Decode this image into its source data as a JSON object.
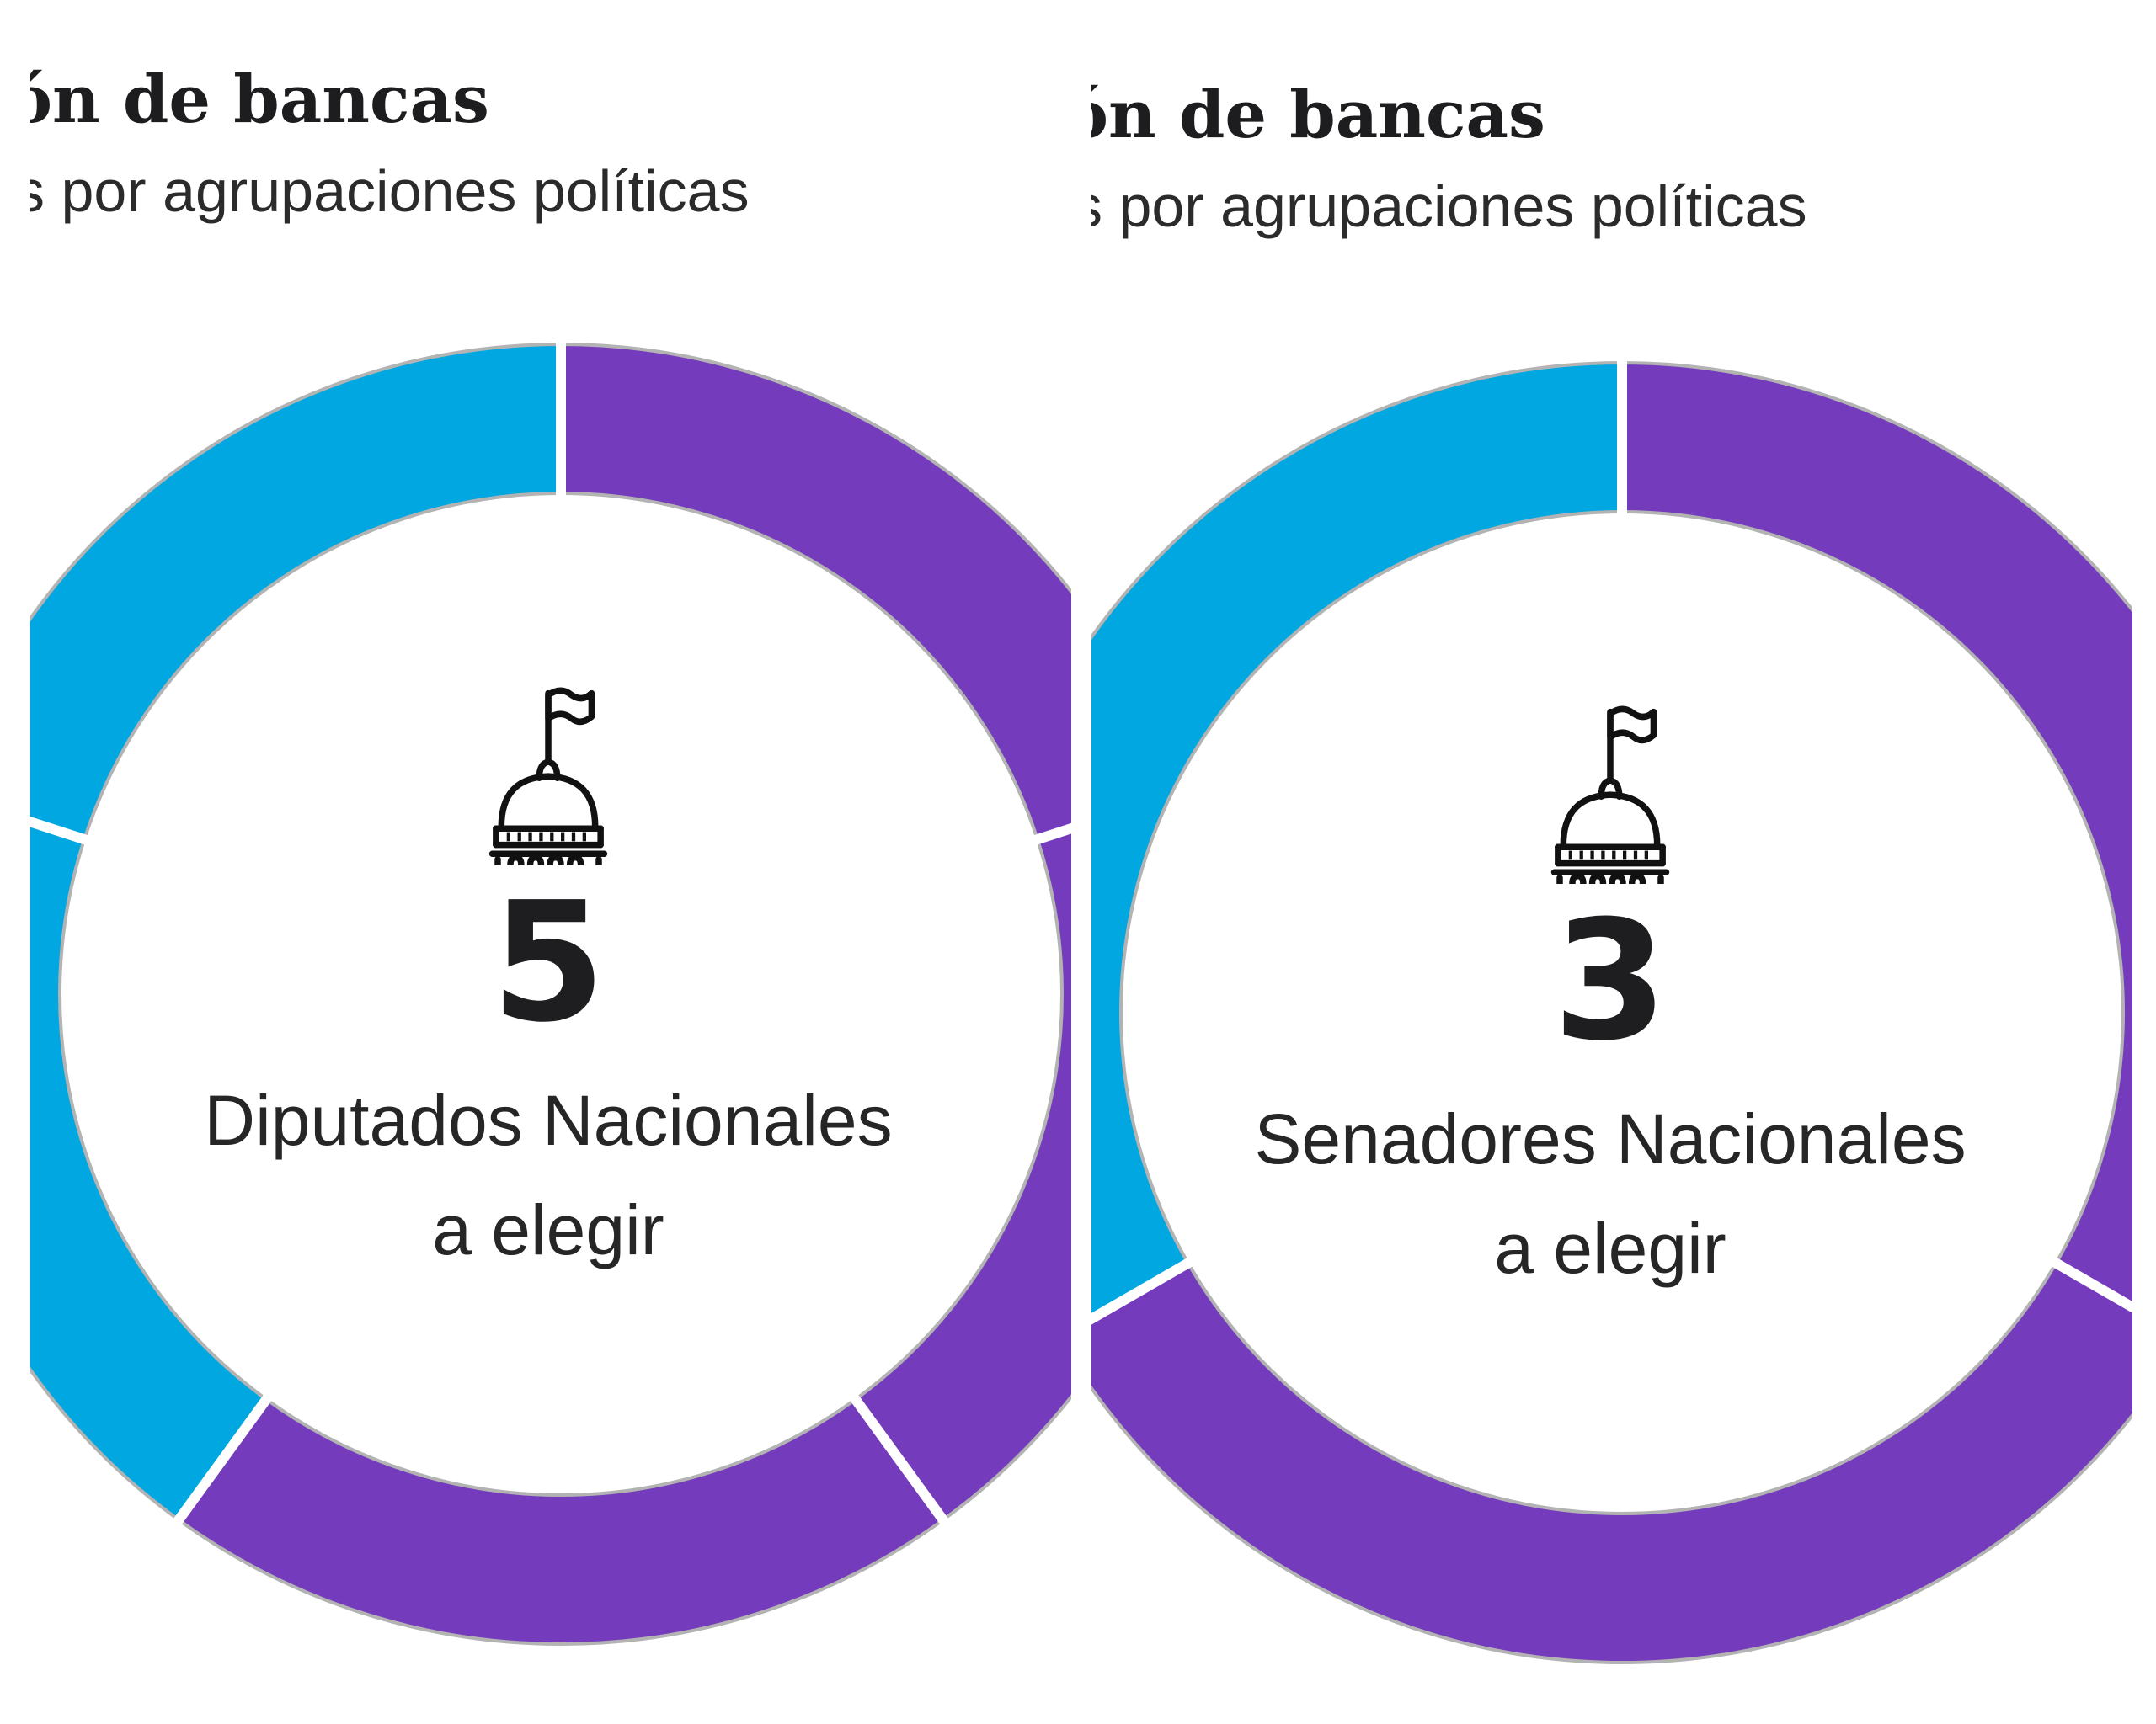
{
  "chart_data": [
    {
      "type": "donut",
      "title": "ón de bancas",
      "subtitle": "s por agrupaciones políticas",
      "center_value": "5",
      "center_label_lines": [
        "Diputados Nacionales",
        "a elegir"
      ],
      "segments": [
        {
          "value": 1,
          "color": "#753bbd"
        },
        {
          "value": 1,
          "color": "#753bbd"
        },
        {
          "value": 1,
          "color": "#753bbd"
        },
        {
          "value": 1,
          "color": "#00a7e1"
        },
        {
          "value": 1,
          "color": "#00a7e1"
        }
      ]
    },
    {
      "type": "donut",
      "title": "ón de bancas",
      "subtitle": "s por agrupaciones políticas",
      "center_value": "3",
      "center_label_lines": [
        "Senadores Nacionales",
        "a elegir"
      ],
      "segments": [
        {
          "value": 1,
          "color": "#753bbd"
        },
        {
          "value": 1,
          "color": "#753bbd"
        },
        {
          "value": 1,
          "color": "#00a7e1"
        }
      ]
    }
  ],
  "icons": {
    "center": "capitol-dome-icon"
  },
  "colors": {
    "purple": "#753bbd",
    "blue": "#00a7e1",
    "separator": "#b3b3b3"
  }
}
